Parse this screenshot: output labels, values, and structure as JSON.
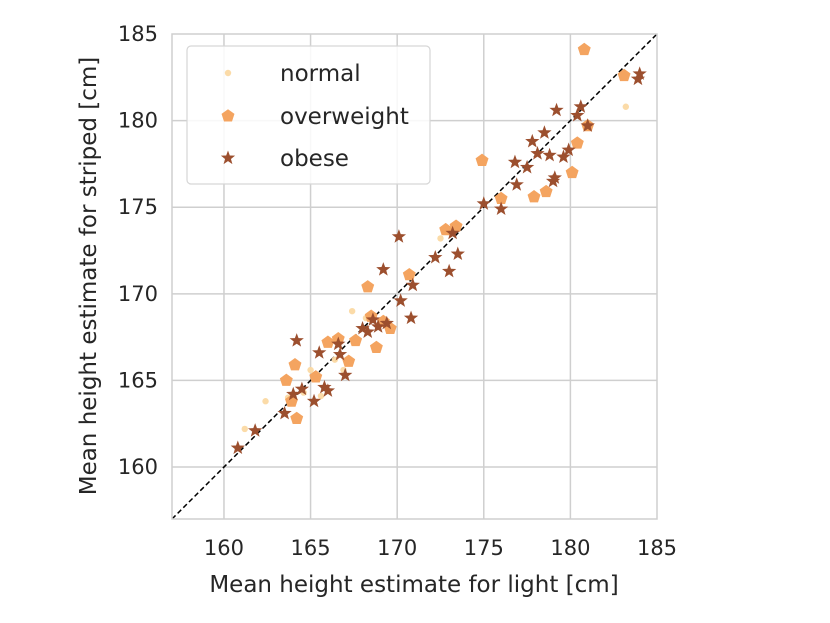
{
  "chart_data": {
    "type": "scatter",
    "title": "",
    "xlabel": "Mean height estimate for light [cm]",
    "ylabel": "Mean height estimate for striped [cm]",
    "xlim": [
      157,
      185
    ],
    "ylim": [
      157,
      185
    ],
    "xticks": [
      160,
      165,
      170,
      175,
      180,
      185
    ],
    "yticks": [
      160,
      165,
      170,
      175,
      180,
      185
    ],
    "grid": true,
    "reference_line": "y = x (dashed)",
    "legend_position": "top-left",
    "colors": {
      "normal": "#fbd9a3",
      "overweight": "#f4a460",
      "obese": "#9c4f2e",
      "grid": "#cfcfcf",
      "identity": "#000000"
    },
    "series": [
      {
        "name": "normal",
        "marker": "circle",
        "x": [
          161.2,
          162.4,
          163.7,
          164.6,
          165.0,
          165.6,
          166.4,
          166.9,
          167.4,
          168.2,
          172.5,
          173.1,
          183.2
        ],
        "y": [
          162.2,
          163.8,
          164.0,
          164.3,
          165.6,
          164.1,
          166.2,
          165.6,
          169.0,
          168.6,
          173.2,
          173.6,
          180.8
        ]
      },
      {
        "name": "overweight",
        "marker": "pentagon",
        "x": [
          163.6,
          163.9,
          164.1,
          164.2,
          165.3,
          166.0,
          166.6,
          167.2,
          167.6,
          168.3,
          168.5,
          168.8,
          169.2,
          169.6,
          170.7,
          172.8,
          173.4,
          174.9,
          176.0,
          177.9,
          178.6,
          180.1,
          180.4,
          180.8,
          181.0,
          183.1
        ],
        "y": [
          165.0,
          163.8,
          165.9,
          162.8,
          165.2,
          167.2,
          167.4,
          166.1,
          167.3,
          170.4,
          168.7,
          166.9,
          168.4,
          168.0,
          171.1,
          173.7,
          173.9,
          177.7,
          175.5,
          175.6,
          175.9,
          177.0,
          178.7,
          184.1,
          179.7,
          182.6
        ]
      },
      {
        "name": "obese",
        "marker": "star",
        "x": [
          160.8,
          161.8,
          163.5,
          164.0,
          164.2,
          164.5,
          165.2,
          165.5,
          165.8,
          166.0,
          166.6,
          166.7,
          167.0,
          168.0,
          168.3,
          168.6,
          168.9,
          169.2,
          169.4,
          170.1,
          170.2,
          170.8,
          170.9,
          172.2,
          173.0,
          173.2,
          173.5,
          175.0,
          176.0,
          176.8,
          176.9,
          177.5,
          177.8,
          178.1,
          178.5,
          178.8,
          179.0,
          179.1,
          179.2,
          179.6,
          179.9,
          180.4,
          180.6,
          181.0,
          183.9,
          184.0
        ],
        "y": [
          161.1,
          162.1,
          163.1,
          164.2,
          167.3,
          164.5,
          163.8,
          166.6,
          164.6,
          164.4,
          167.1,
          166.5,
          165.3,
          168.0,
          167.8,
          168.5,
          168.1,
          171.4,
          168.3,
          173.3,
          169.6,
          168.6,
          170.5,
          172.1,
          171.3,
          173.5,
          172.3,
          175.2,
          174.9,
          177.6,
          176.3,
          177.3,
          178.8,
          178.1,
          179.3,
          178.0,
          176.5,
          176.7,
          180.6,
          177.9,
          178.3,
          180.3,
          180.8,
          179.7,
          182.4,
          182.7
        ]
      }
    ]
  }
}
